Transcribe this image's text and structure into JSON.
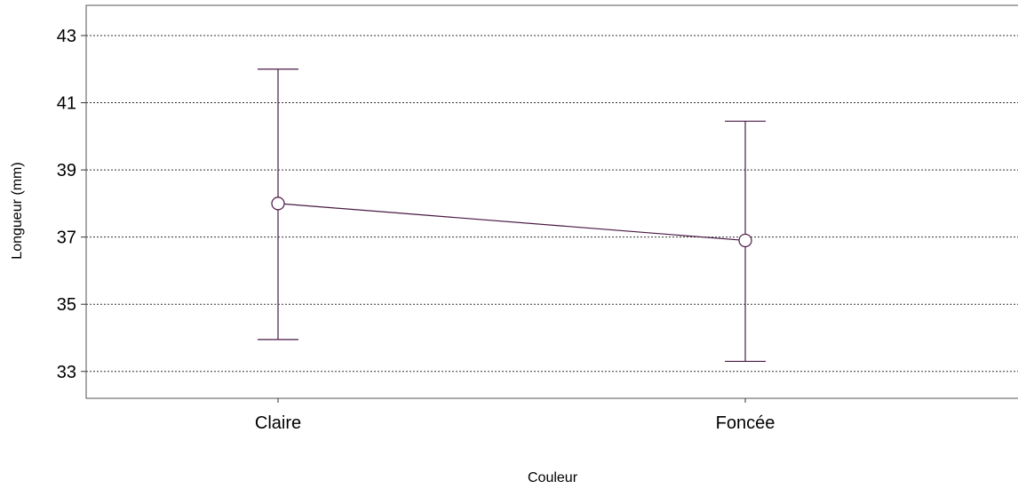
{
  "chart_data": {
    "type": "line",
    "categories": [
      "Claire",
      "Foncée"
    ],
    "series": [
      {
        "values": [
          38.0,
          36.9
        ],
        "error_low": [
          33.95,
          33.3
        ],
        "error_high": [
          42.0,
          40.45
        ],
        "color": "#4b1a45"
      }
    ],
    "xlabel": "Couleur",
    "ylabel": "Longueur  (mm)",
    "yticks": [
      33,
      35,
      37,
      39,
      41,
      43
    ],
    "ylim": [
      32.2,
      43.9
    ],
    "grid": "horizontal dotted",
    "marker": "open-circle"
  }
}
